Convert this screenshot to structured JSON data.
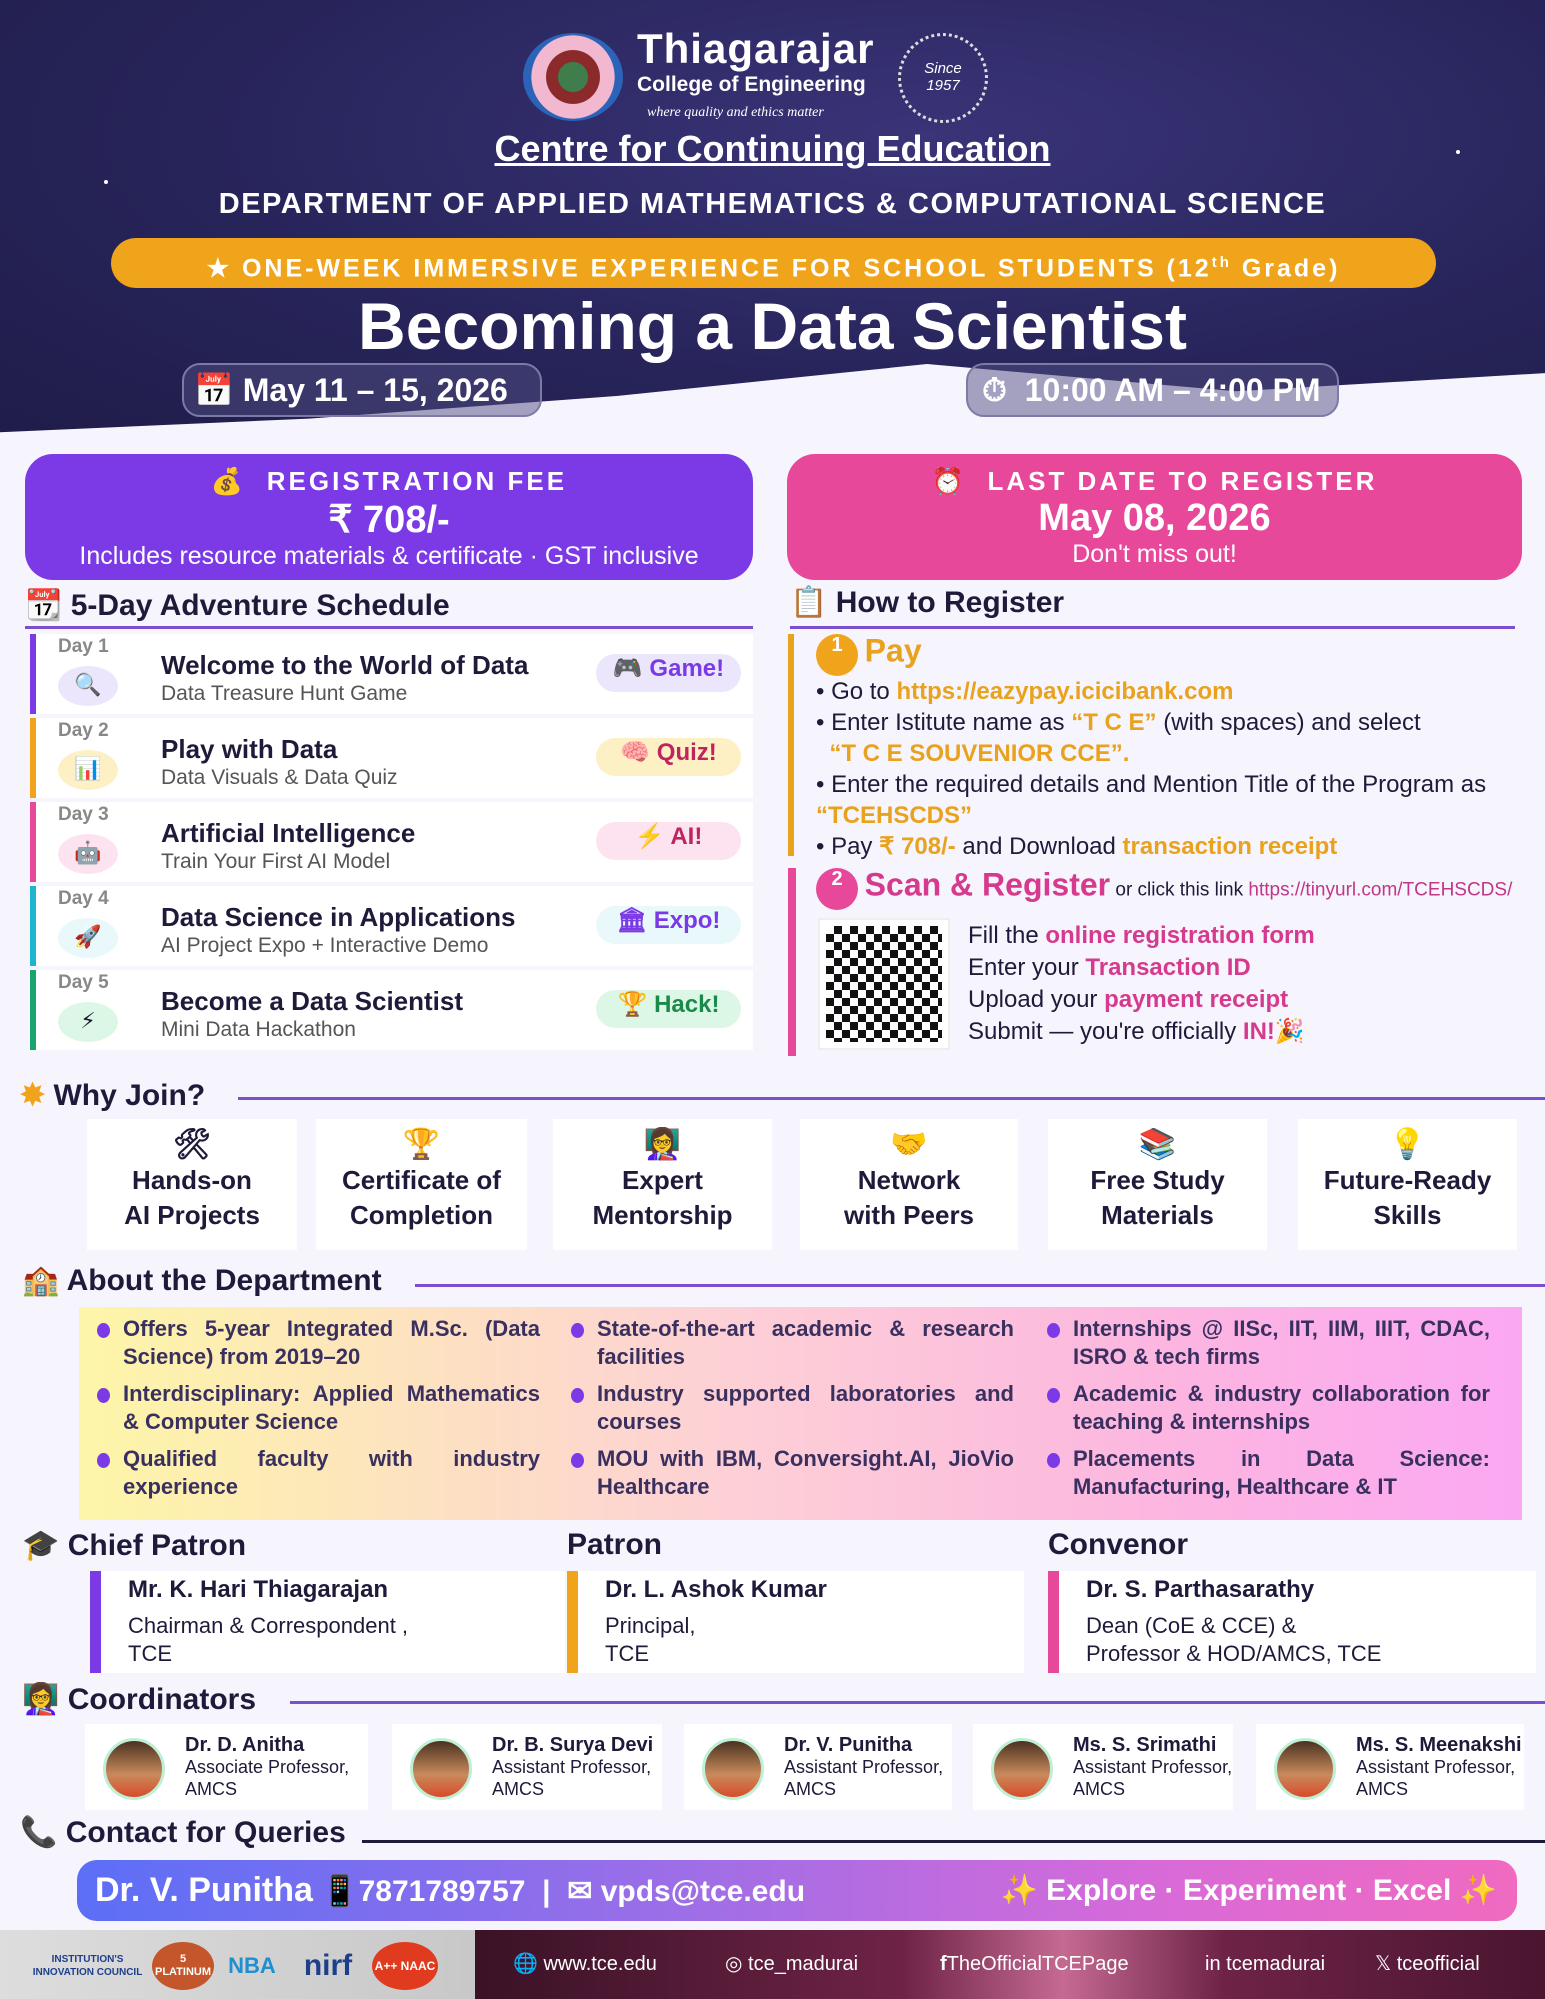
{
  "header": {
    "logo_name": "Thiagarajar",
    "logo_sub": "College of Engineering",
    "logo_tagline": "where quality and ethics matter",
    "since": "Since",
    "since_year": "1957",
    "centre": "Centre for Continuing Education",
    "department": "DEPARTMENT OF APPLIED MATHEMATICS & COMPUTATIONAL SCIENCE",
    "banner": "ONE-WEEK IMMERSIVE EXPERIENCE FOR SCHOOL STUDENTS (12",
    "banner_sup": "th",
    "banner_end": " Grade)",
    "title": "Becoming a Data Scientist",
    "dates": "May 11 – 15, 2026",
    "time": "10:00 AM – 4:00 PM"
  },
  "fee": {
    "label": "REGISTRATION FEE",
    "amount": "₹ 708/-",
    "note": "Includes resource materials & certificate · GST inclusive"
  },
  "deadline": {
    "label": "LAST DATE TO REGISTER",
    "date": "May 08, 2026",
    "note": "Don't miss out!"
  },
  "schedule": {
    "title": "5-Day Adventure Schedule",
    "days": [
      {
        "day": "Day 1",
        "title": "Welcome to the World of Data",
        "sub": "Data Treasure Hunt Game",
        "tag": "Game!",
        "icon": "🔍",
        "tag_icon": "🎮",
        "color": "#7b3ae6",
        "soft": "#ebe6fb",
        "tagc": "#7b3ae6"
      },
      {
        "day": "Day 2",
        "title": "Play with Data",
        "sub": "Data Visuals & Data Quiz",
        "tag": "Quiz!",
        "icon": "📊",
        "tag_icon": "🧠",
        "color": "#f0a41c",
        "soft": "#fdf0c4",
        "tagc": "#c0245e"
      },
      {
        "day": "Day 3",
        "title": "Artificial Intelligence",
        "sub": "Train Your First AI Model",
        "tag": "AI!",
        "icon": "🤖",
        "tag_icon": "⚡",
        "color": "#e8489a",
        "soft": "#fde3ef",
        "tagc": "#c0245e"
      },
      {
        "day": "Day 4",
        "title": "Data Science in Applications",
        "sub": "AI Project Expo + Interactive Demo",
        "tag": "Expo!",
        "icon": "🚀",
        "tag_icon": "🏛",
        "color": "#1fb4cf",
        "soft": "#e8f8fb",
        "tagc": "#7b3ae6"
      },
      {
        "day": "Day 5",
        "title": "Become a Data Scientist",
        "sub": "Mini Data Hackathon",
        "tag": "Hack!",
        "icon": "⚡",
        "tag_icon": "🏆",
        "color": "#1aa56e",
        "soft": "#ddf7e6",
        "tagc": "#1a8a4a"
      }
    ]
  },
  "register": {
    "title": "How to Register",
    "step1": {
      "num": "1",
      "title": "Pay",
      "b1a": "Go to ",
      "b1b": "https://eazypay.icicibank.com",
      "b2a": "Enter Istitute name as ",
      "b2b": "“T C E”",
      "b2c": " (with spaces) and select",
      "b2d": "“T C E SOUVENIOR CCE”.",
      "b3a": "Enter the required details and Mention Title of the Program as ",
      "b3b": "“TCEHSCDS”",
      "b4a": "Pay ",
      "b4b": "₹ 708/-",
      "b4c": " and Download ",
      "b4d": "transaction receipt"
    },
    "step2": {
      "num": "2",
      "title": "Scan & Register",
      "or": " or click this link ",
      "link": "https://tinyurl.com/TCEHSCDS/",
      "l1a": "Fill the ",
      "l1b": "online registration form",
      "l2a": "Enter your ",
      "l2b": "Transaction ID",
      "l3a": "Upload your ",
      "l3b": "payment receipt",
      "l4a": "Submit — you're officially ",
      "l4b": "IN!",
      "l4c": "🎉"
    }
  },
  "why": {
    "title": "Why Join?",
    "items": [
      {
        "icon": "🛠",
        "l1": "Hands-on",
        "l2": "AI Projects"
      },
      {
        "icon": "🏆",
        "l1": "Certificate of",
        "l2": "Completion"
      },
      {
        "icon": "👩‍🏫",
        "l1": "Expert",
        "l2": "Mentorship"
      },
      {
        "icon": "🤝",
        "l1": "Network",
        "l2": "with Peers"
      },
      {
        "icon": "📚",
        "l1": "Free Study",
        "l2": "Materials"
      },
      {
        "icon": "💡",
        "l1": "Future-Ready",
        "l2": "Skills"
      }
    ]
  },
  "about": {
    "title": "About the Department",
    "col1": [
      "Offers 5-year Integrated M.Sc. (Data Science) from 2019–20",
      "Interdisciplinary: Applied Mathematics & Computer Science",
      "Qualified faculty with industry experience"
    ],
    "col2": [
      "State-of-the-art academic & research facilities",
      "Industry supported laboratories and courses",
      "MOU with IBM, Conversight.AI, JioVio Healthcare"
    ],
    "col3": [
      "Internships @ IISc, IIT, IIM, IIIT, CDAC, ISRO & tech firms",
      "Academic & industry collaboration for teaching & internships",
      "Placements in Data Science: Manufacturing, Healthcare & IT"
    ]
  },
  "patrons": [
    {
      "role": "Chief Patron",
      "name": "Mr. K. Hari Thiagarajan",
      "d1": "Chairman & Correspondent ,",
      "d2": "TCE",
      "color": "#7b3ae6"
    },
    {
      "role": "Patron",
      "name": "Dr. L. Ashok Kumar",
      "d1": "Principal,",
      "d2": "TCE",
      "color": "#f0a41c"
    },
    {
      "role": "Convenor",
      "name": "Dr. S. Parthasarathy",
      "d1": "Dean (CoE & CCE)  &",
      "d2": "Professor & HOD/AMCS, TCE",
      "color": "#e8489a"
    }
  ],
  "coordinators": {
    "title": "Coordinators",
    "items": [
      {
        "name": "Dr. D. Anitha",
        "role": "Associate Professor,",
        "dept": "AMCS"
      },
      {
        "name": "Dr. B. Surya Devi",
        "role": "Assistant Professor,",
        "dept": "AMCS"
      },
      {
        "name": "Dr. V. Punitha",
        "role": "Assistant Professor,",
        "dept": "AMCS"
      },
      {
        "name": "Ms. S. Srimathi",
        "role": "Assistant Professor,",
        "dept": "AMCS"
      },
      {
        "name": "Ms. S. Meenakshi",
        "role": "Assistant Professor,",
        "dept": "AMCS"
      }
    ]
  },
  "contact": {
    "title": "Contact for Queries",
    "name": "Dr. V. Punitha",
    "phone": "7871789757",
    "sep": "|",
    "email": "vpds@tce.edu",
    "motto": "Explore · Experiment · Excel"
  },
  "footer": {
    "badges": [
      "INSTITUTION'S INNOVATION COUNCIL",
      "5 PLATINUM",
      "NBA",
      "nirf",
      "A++ NAAC"
    ],
    "web": "www.tce.edu",
    "instagram": "tce_madurai",
    "facebook": "TheOfficialTCEPage",
    "linkedin": "tcemadurai",
    "x": "tceofficial"
  }
}
